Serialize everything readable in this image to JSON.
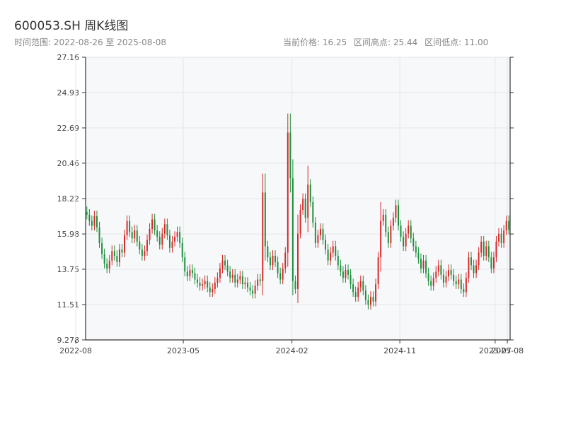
{
  "header": {
    "title": "600053.SH 周K线图",
    "range_label": "时间范围: 2022-08-26 至 2025-08-08",
    "current_price": "当前价格: 16.25",
    "high": "区间高点: 25.44",
    "low": "区间低点: 11.00"
  },
  "chart_data": {
    "type": "candlestick",
    "title": "600053.SH 周K线图",
    "ylim": [
      9.278,
      27.16
    ],
    "y_ticks": [
      "27.16",
      "24.93",
      "22.69",
      "20.46",
      "18.22",
      "15.98",
      "13.75",
      "11.51",
      "9.278"
    ],
    "x_ticks": [
      "2022-08",
      "2023-05",
      "2024-02",
      "2024-11",
      "2025-07",
      "2025-08"
    ],
    "x_range": [
      "2022-08-26",
      "2025-08-08"
    ],
    "colors": {
      "up": "#d62728",
      "down": "#1a8f3a",
      "grid": "#e3e6ea",
      "background": "#f7f8fa",
      "axis": "#333333"
    },
    "close": [
      17.2,
      16.8,
      16.5,
      17.1,
      16.4,
      15.4,
      14.7,
      14.1,
      13.8,
      14.3,
      14.9,
      14.6,
      14.2,
      15.0,
      14.8,
      15.9,
      16.8,
      16.1,
      15.7,
      16.2,
      15.5,
      15.0,
      14.6,
      14.9,
      15.6,
      16.3,
      16.9,
      16.2,
      15.8,
      15.3,
      16.0,
      16.6,
      15.9,
      15.1,
      15.5,
      15.8,
      16.1,
      15.4,
      14.5,
      13.6,
      13.3,
      13.7,
      13.5,
      13.1,
      12.9,
      12.7,
      12.8,
      13.0,
      12.6,
      12.3,
      12.5,
      12.9,
      13.2,
      13.8,
      14.3,
      14.0,
      13.6,
      13.2,
      13.4,
      12.9,
      13.1,
      13.3,
      12.8,
      12.9,
      12.6,
      12.4,
      12.2,
      12.7,
      13.1,
      13.0,
      18.6,
      15.2,
      14.5,
      14.0,
      14.6,
      14.2,
      13.5,
      13.1,
      13.8,
      14.8,
      22.4,
      19.5,
      13.0,
      12.5,
      16.0,
      17.5,
      18.2,
      17.0,
      19.1,
      18.0,
      16.7,
      15.4,
      15.9,
      16.3,
      15.6,
      15.0,
      14.3,
      14.8,
      15.2,
      14.6,
      14.0,
      13.6,
      13.2,
      13.7,
      13.4,
      12.8,
      12.3,
      12.0,
      12.6,
      13.0,
      12.4,
      11.8,
      11.5,
      12.0,
      11.7,
      12.8,
      14.5,
      16.8,
      17.2,
      16.1,
      15.4,
      16.5,
      17.0,
      17.8,
      16.5,
      15.8,
      15.2,
      16.0,
      16.5,
      15.7,
      15.2,
      14.8,
      14.4,
      13.8,
      14.3,
      13.5,
      13.0,
      12.7,
      13.2,
      13.6,
      14.0,
      13.4,
      12.9,
      13.3,
      13.7,
      13.4,
      13.0,
      12.8,
      13.1,
      12.5,
      12.3,
      13.2,
      14.5,
      14.0,
      13.5,
      14.0,
      14.8,
      15.5,
      14.6,
      15.2,
      14.5,
      13.8,
      14.5,
      15.5,
      16.0,
      15.4,
      16.2,
      16.8,
      16.25
    ]
  }
}
